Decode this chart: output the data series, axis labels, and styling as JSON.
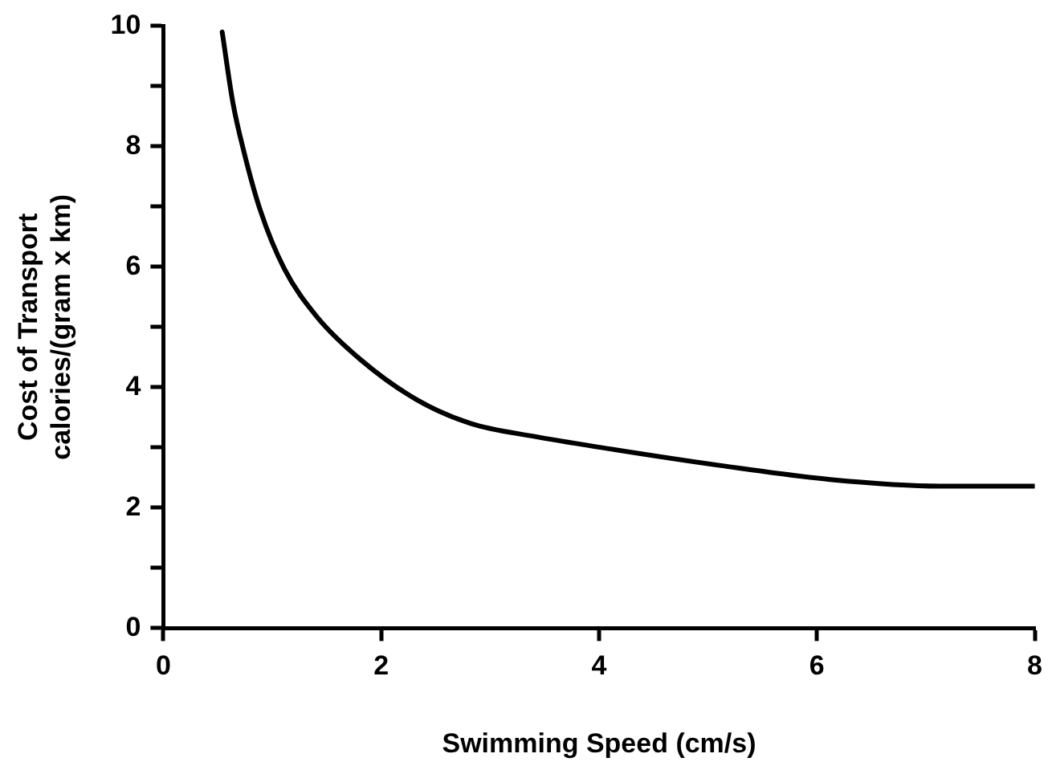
{
  "chart_data": {
    "type": "line",
    "xlabel": "Swimming Speed (cm/s)",
    "ylabel": "Cost of Transport\ncalories/(gram x km)",
    "series": [
      {
        "color": "#000000",
        "x": [
          0.54,
          0.64,
          0.74,
          0.89,
          1.11,
          1.41,
          1.81,
          2.32,
          2.82,
          3.42,
          4.02,
          5.12,
          6.12,
          7.13,
          8.0
        ],
        "values": [
          9.9,
          8.71,
          7.91,
          6.94,
          5.97,
          5.17,
          4.46,
          3.8,
          3.4,
          3.18,
          3.0,
          2.7,
          2.47,
          2.36,
          2.36
        ]
      }
    ],
    "xlim": [
      0,
      8
    ],
    "xticks": [
      0,
      2,
      4,
      6,
      8
    ],
    "ylim": [
      0,
      10
    ],
    "yticks": [
      0,
      {
        "value": 1,
        "label": null
      },
      2,
      {
        "value": 3,
        "label": null
      },
      4,
      {
        "value": 5,
        "label": null
      },
      6,
      {
        "value": 7,
        "label": null
      },
      8,
      {
        "value": 9,
        "label": null
      },
      10
    ],
    "grid": false,
    "legend": false,
    "marker": "none",
    "line_style": "solid"
  }
}
